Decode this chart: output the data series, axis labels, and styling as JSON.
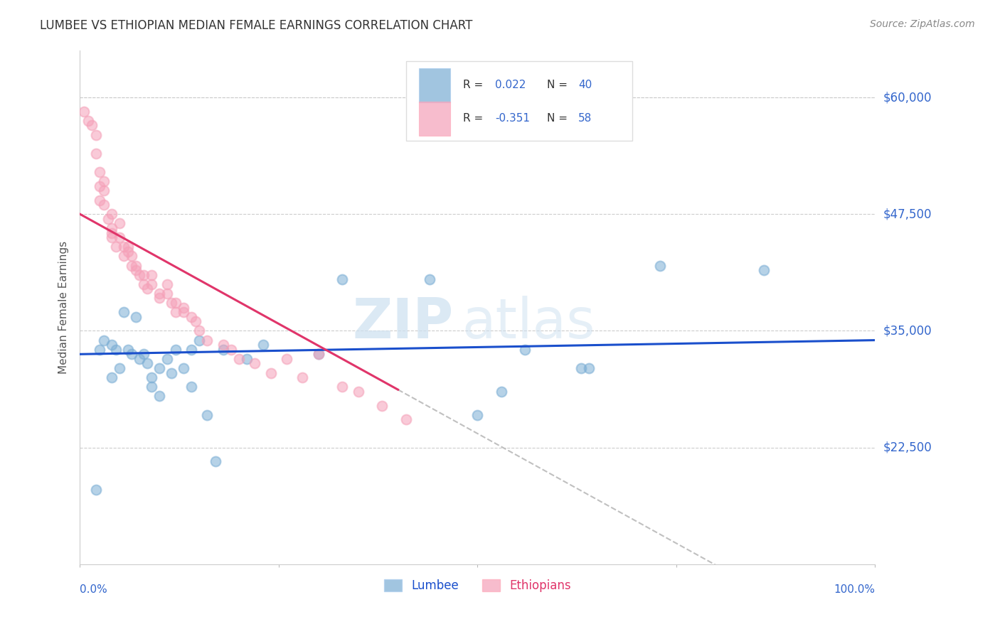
{
  "title": "LUMBEE VS ETHIOPIAN MEDIAN FEMALE EARNINGS CORRELATION CHART",
  "source": "Source: ZipAtlas.com",
  "ylabel": "Median Female Earnings",
  "ymin": 10000,
  "ymax": 65000,
  "xmin": 0.0,
  "xmax": 1.0,
  "legend_blue_r": "R =  0.022",
  "legend_blue_n": "N = 40",
  "legend_pink_r": "R = -0.351",
  "legend_pink_n": "N = 58",
  "legend_label_blue": "Lumbee",
  "legend_label_pink": "Ethiopians",
  "watermark_zip": "ZIP",
  "watermark_atlas": "atlas",
  "blue_color": "#7aadd4",
  "pink_color": "#f5a0b8",
  "trendline_blue_color": "#1a4fcc",
  "trendline_pink_color": "#e0356a",
  "grid_color": "#cccccc",
  "title_color": "#333333",
  "source_color": "#888888",
  "ylabel_color": "#555555",
  "ytick_color": "#3366cc",
  "xtick_color": "#3366cc",
  "legend_text_color": "#333333",
  "legend_num_color": "#3366cc",
  "lumbee_x": [
    0.02,
    0.025,
    0.03,
    0.04,
    0.04,
    0.045,
    0.05,
    0.055,
    0.06,
    0.065,
    0.07,
    0.075,
    0.08,
    0.085,
    0.09,
    0.09,
    0.1,
    0.1,
    0.11,
    0.115,
    0.12,
    0.13,
    0.14,
    0.14,
    0.15,
    0.16,
    0.17,
    0.18,
    0.21,
    0.23,
    0.3,
    0.33,
    0.44,
    0.5,
    0.53,
    0.56,
    0.63,
    0.64,
    0.73,
    0.86
  ],
  "lumbee_y": [
    18000,
    33000,
    34000,
    33500,
    30000,
    33000,
    31000,
    37000,
    33000,
    32500,
    36500,
    32000,
    32500,
    31500,
    30000,
    29000,
    28000,
    31000,
    32000,
    30500,
    33000,
    31000,
    33000,
    29000,
    34000,
    26000,
    21000,
    33000,
    32000,
    33500,
    32500,
    40500,
    40500,
    26000,
    28500,
    33000,
    31000,
    31000,
    42000,
    41500
  ],
  "ethiopian_x": [
    0.005,
    0.01,
    0.015,
    0.02,
    0.02,
    0.025,
    0.025,
    0.025,
    0.03,
    0.03,
    0.03,
    0.035,
    0.04,
    0.04,
    0.04,
    0.04,
    0.045,
    0.05,
    0.05,
    0.055,
    0.055,
    0.06,
    0.06,
    0.065,
    0.065,
    0.07,
    0.07,
    0.075,
    0.08,
    0.08,
    0.085,
    0.09,
    0.09,
    0.1,
    0.1,
    0.11,
    0.11,
    0.115,
    0.12,
    0.12,
    0.13,
    0.13,
    0.14,
    0.145,
    0.15,
    0.16,
    0.18,
    0.19,
    0.2,
    0.22,
    0.24,
    0.26,
    0.28,
    0.3,
    0.33,
    0.35,
    0.38,
    0.41
  ],
  "ethiopian_y": [
    58500,
    57500,
    57000,
    56000,
    54000,
    52000,
    50500,
    49000,
    51000,
    50000,
    48500,
    47000,
    47500,
    46000,
    45500,
    45000,
    44000,
    46500,
    45000,
    44000,
    43000,
    44000,
    43500,
    43000,
    42000,
    42000,
    41500,
    41000,
    41000,
    40000,
    39500,
    41000,
    40000,
    39000,
    38500,
    40000,
    39000,
    38000,
    38000,
    37000,
    37500,
    37000,
    36500,
    36000,
    35000,
    34000,
    33500,
    33000,
    32000,
    31500,
    30500,
    32000,
    30000,
    32500,
    29000,
    28500,
    27000,
    25500
  ],
  "ytick_positions": [
    22500,
    35000,
    47500,
    60000
  ],
  "ytick_labels": [
    "$22,500",
    "$35,000",
    "$47,500",
    "$60,000"
  ]
}
